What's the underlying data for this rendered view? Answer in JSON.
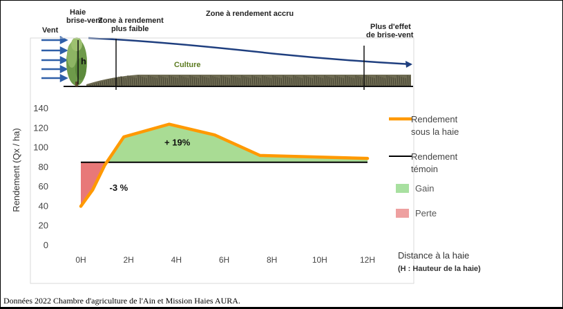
{
  "diagram": {
    "wind_label": "Vent",
    "hedge_label": [
      "Haie",
      "brise-vent"
    ],
    "height_label": "h",
    "zone_low_label": [
      "Zone à rendement",
      "plus faible"
    ],
    "zone_high_label": "Zone à rendement accru",
    "zone_end_label": [
      "Plus d'effet",
      "de brise-vent"
    ],
    "crop_label": "Culture"
  },
  "chart_data": {
    "type": "line",
    "ylabel": "Rendement (Qx / ha)",
    "xlabel": "Distance à la haie",
    "xlabel_sub": "(H : Hauteur de la haie)",
    "ylim": [
      0,
      140
    ],
    "yticks": [
      0,
      20,
      40,
      60,
      80,
      100,
      120,
      140
    ],
    "xlim": [
      0,
      12
    ],
    "xticks": [
      0,
      2,
      4,
      6,
      8,
      10,
      12
    ],
    "xtick_labels": [
      "0H",
      "2H",
      "4H",
      "6H",
      "8H",
      "10H",
      "12H"
    ],
    "series": [
      {
        "name": "Rendement sous la haie",
        "color": "#FF9900",
        "x": [
          0,
          0.5,
          1.0,
          1.8,
          3.7,
          5.6,
          7.5,
          12
        ],
        "y": [
          40,
          57,
          82,
          111,
          124,
          113,
          92,
          89
        ]
      },
      {
        "name": "Rendement témoin",
        "color": "#000000",
        "x": [
          0,
          12
        ],
        "y": [
          85,
          85
        ]
      }
    ],
    "annotations": [
      {
        "text": "+ 19%",
        "x": 3.5,
        "y": 102
      },
      {
        "text": "-3 %",
        "x": 1.2,
        "y": 56
      }
    ],
    "legend": {
      "position": "right",
      "items": [
        {
          "label_lines": [
            "Rendement",
            "sous la haie"
          ],
          "kind": "line",
          "color": "#FF9900"
        },
        {
          "label_lines": [
            "Rendement",
            "témoin"
          ],
          "kind": "line",
          "color": "#000000"
        },
        {
          "label": "Gain",
          "kind": "box",
          "color": "#A8E0A0"
        },
        {
          "label": "Perte",
          "kind": "box",
          "color": "#EEA0A0"
        }
      ]
    },
    "fill_colors": {
      "gain": "#A9DC94",
      "loss": "#E87878"
    }
  },
  "source": "Données 2022 Chambre d'agriculture de l'Ain et Mission Haies AURA."
}
